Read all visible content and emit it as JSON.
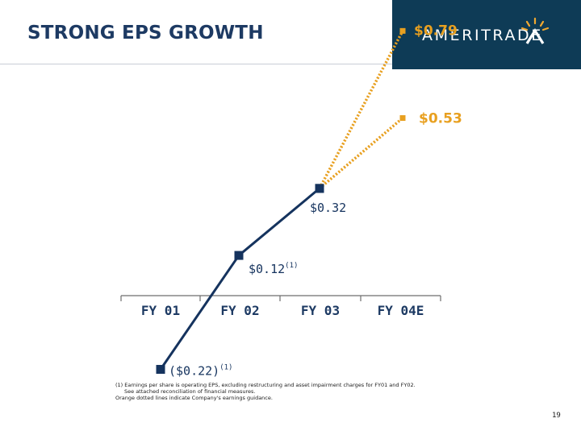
{
  "slide": {
    "title": "STRONG EPS GROWTH",
    "logo_text": "AMERITRADE",
    "page_number": "19"
  },
  "footnotes": [
    "(1) Earnings per share is operating EPS, excluding restructuring and asset impairment charges for FY01 and FY02.",
    "See attached reconciliation of financial measures.",
    "Orange dotted lines indicate Company's earnings guidance."
  ],
  "colors": {
    "navy": "#15335e",
    "orange": "#e8a020",
    "logo_bg": "#0e3b56"
  },
  "chart_data": {
    "type": "line",
    "categories": [
      "FY 01",
      "FY 02",
      "FY 03",
      "FY 04E"
    ],
    "series": [
      {
        "style": "solid",
        "color": "#15335e",
        "x": [
          "FY 01",
          "FY 02",
          "FY 03"
        ],
        "values": [
          -0.22,
          0.12,
          0.32
        ]
      },
      {
        "style": "dotted",
        "color": "#e8a020",
        "x": [
          "FY 03",
          "FY 04E"
        ],
        "values": [
          0.32,
          0.53
        ]
      },
      {
        "style": "dotted",
        "color": "#e8a020",
        "x": [
          "FY 03",
          "FY 04E"
        ],
        "values": [
          0.32,
          0.79
        ]
      }
    ],
    "data_labels": [
      {
        "text": "($0.22)",
        "sup": "(1)",
        "value": -0.22,
        "category": "FY 01",
        "color": "#15335e"
      },
      {
        "text": "$0.12",
        "sup": "(1)",
        "value": 0.12,
        "category": "FY 02",
        "color": "#15335e"
      },
      {
        "text": "$0.32",
        "sup": "",
        "value": 0.32,
        "category": "FY 03",
        "color": "#15335e"
      },
      {
        "text": "$0.53",
        "sup": "",
        "value": 0.53,
        "category": "FY 04E",
        "color": "#e8a020"
      },
      {
        "text": "$0.79",
        "sup": "",
        "value": 0.79,
        "category": "FY 04E",
        "color": "#e8a020"
      }
    ],
    "ylim": [
      -0.22,
      0.79
    ]
  }
}
